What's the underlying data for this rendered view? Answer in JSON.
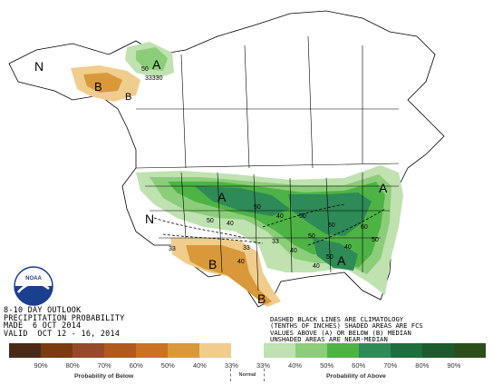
{
  "outlook": {
    "line1": "8-10 DAY OUTLOOK",
    "line2": "PRECIPITATION PROBABILITY",
    "line3": "MADE  6 OCT 2014",
    "line4": "VALID  OCT 12 - 16, 2014"
  },
  "legend_note": {
    "line1": "DASHED BLACK LINES ARE CLIMATOLOGY",
    "line2": "(TENTHS OF INCHES) SHADED AREAS ARE FCS",
    "line3": "VALUES ABOVE (A) OR BELOW (B) MEDIAN",
    "line4": "UNSHADED AREAS ARE NEAR-MEDIAN"
  },
  "logo": {
    "text": "NOAA"
  },
  "map_labels": {
    "alaska_A": "A",
    "alaska_N": "N",
    "alaska_B": "B",
    "alaska_B2": "B",
    "alaska_50": "50",
    "alaska_3330": "33330",
    "east_A": "A",
    "east_A2": "A",
    "east_A3": "A",
    "west_N": "N",
    "southwest_B": "B",
    "texas_B": "B",
    "c50a": "50",
    "c40a": "40",
    "c50b": "50",
    "c40b": "40",
    "c33a": "33",
    "c33b": "33",
    "c40c": "40",
    "c50c": "50",
    "c60a": "60",
    "c50d": "50",
    "c40d": "40",
    "c60b": "60",
    "c50e": "50",
    "c40e": "40",
    "c33c": "33",
    "c50f": "50",
    "c40f": "40"
  },
  "colorbar": {
    "colors": [
      "#4a2a17",
      "#7a3b10",
      "#964a2a",
      "#b05a1e",
      "#c97224",
      "#d9993a",
      "#f0cd8c",
      "#ffffff",
      "#bfe2b0",
      "#8ccd7a",
      "#4eb345",
      "#2e8a57",
      "#1f6f3e",
      "#1d5b2c",
      "#2b4f1a"
    ],
    "ticks": [
      "90%",
      "80%",
      "70%",
      "60%",
      "50%",
      "40%",
      "33%",
      "33%",
      "40%",
      "50%",
      "60%",
      "70%",
      "80%",
      "90%"
    ]
  },
  "axis": {
    "below": "Probability of Below",
    "normal": "Normal",
    "above": "Probability of Above"
  }
}
